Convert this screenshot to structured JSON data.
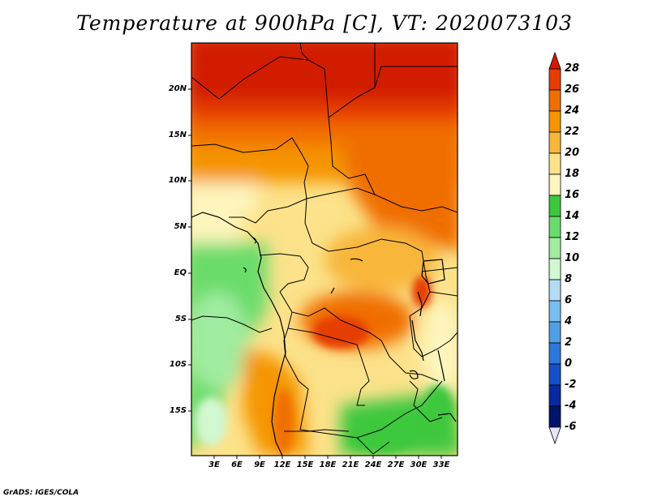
{
  "title": "Temperature at 900hPa [C], VT: 2020073103",
  "credit": "GrADS: IGES/COLA",
  "map": {
    "lat_labels": [
      "20N",
      "15N",
      "10N",
      "5N",
      "EQ",
      "5S",
      "10S",
      "15S"
    ],
    "lon_labels": [
      "3E",
      "6E",
      "9E",
      "12E",
      "15E",
      "18E",
      "21E",
      "24E",
      "27E",
      "30E",
      "33E"
    ]
  },
  "colorbar": {
    "levels": [
      "28",
      "26",
      "24",
      "22",
      "20",
      "18",
      "16",
      "14",
      "12",
      "10",
      "8",
      "6",
      "4",
      "2",
      "0",
      "-2",
      "-4",
      "-6"
    ],
    "colors": [
      "#d21a00",
      "#e63c00",
      "#f06e00",
      "#f59500",
      "#f8b63a",
      "#fce28a",
      "#fdf5bd",
      "#3cc83c",
      "#6adc6a",
      "#a0eca0",
      "#d2f8d2",
      "#b4dcf5",
      "#78bef0",
      "#50a0e6",
      "#2d78dc",
      "#1450c8",
      "#0a28a0",
      "#00146e"
    ],
    "under_color": "#e6e6fa"
  }
}
